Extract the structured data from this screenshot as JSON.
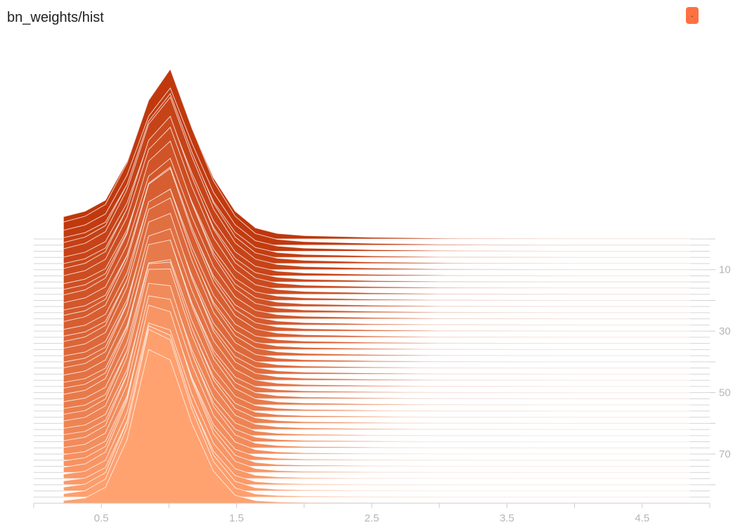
{
  "title": "bn_weights/hist",
  "legend": {
    "label": "."
  },
  "colors": {
    "first_step": "#bf360c",
    "last_step": "#ffa270",
    "fill_outline": "#ffffff",
    "axis": "#cccccc",
    "tick_text": "#b5b5b5"
  },
  "chart_data": {
    "type": "area",
    "title": "bn_weights/hist",
    "style": "offset histogram",
    "x_ticks": [
      "0.5",
      "1.5",
      "2.5",
      "3.5",
      "4.5"
    ],
    "x_tick_values": [
      0.5,
      1.5,
      2.5,
      3.5,
      4.5
    ],
    "y_ticks": [
      "10",
      "30",
      "50",
      "70"
    ],
    "y_tick_values": [
      10,
      30,
      50,
      70
    ],
    "xlim": [
      0,
      5
    ],
    "step_range": [
      0,
      86
    ],
    "step_count": 44,
    "bin_x": [
      0.22,
      0.38,
      0.53,
      0.69,
      0.85,
      1.01,
      1.17,
      1.33,
      1.49,
      1.64,
      1.8,
      2.0,
      2.5,
      3.0,
      3.5,
      4.0,
      4.5,
      4.85
    ],
    "distribution_first_step": [
      8,
      10,
      14,
      28,
      49,
      60,
      40,
      22,
      10,
      4,
      2,
      1.2,
      0.6,
      0.3,
      0.2,
      0.1,
      0.1,
      0.1
    ],
    "distribution_last_step": [
      1,
      2,
      6,
      24,
      58,
      54,
      30,
      12,
      3,
      1,
      0.5,
      0.3,
      0.2,
      0.1,
      0.1,
      0.1,
      0.1,
      0.1
    ],
    "grid": false,
    "legend_placement": "top-right"
  }
}
